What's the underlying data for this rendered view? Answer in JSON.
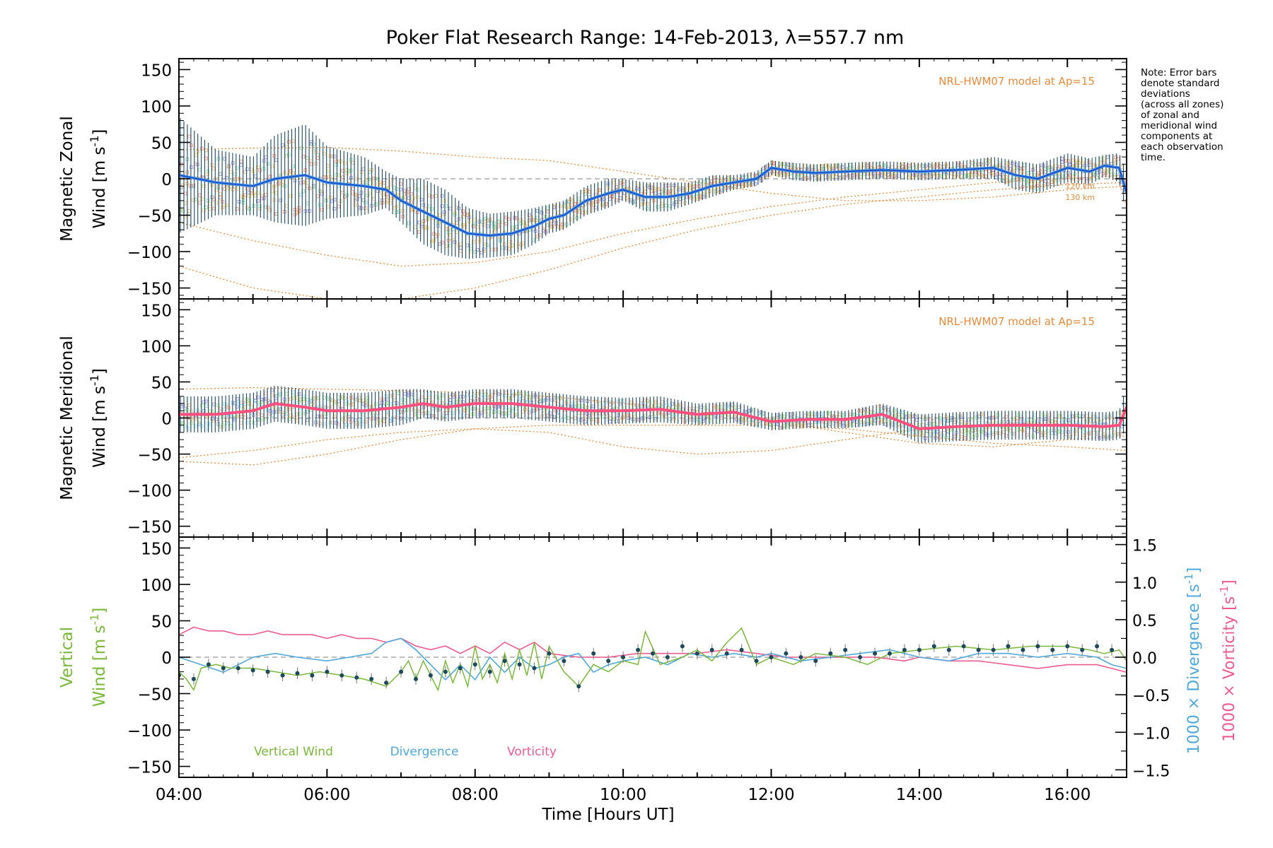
{
  "chart_data": {
    "title": "Poker Flat Research Range: 14-Feb-2013, λ=557.7 nm",
    "xlabel": "Time [Hours UT]",
    "xlim": [
      4.0,
      16.8
    ],
    "x_ticks": [
      4,
      6,
      8,
      10,
      12,
      14,
      16
    ],
    "x_tick_labels": [
      "04:00",
      "06:00",
      "08:00",
      "10:00",
      "12:00",
      "14:00",
      "16:00"
    ],
    "y_ticks": [
      150,
      100,
      50,
      0,
      -50,
      -100,
      -150
    ],
    "y_tick_labels": [
      "150",
      "100",
      "50",
      "0",
      "−50",
      "−100",
      "−150"
    ],
    "ylim": [
      -165,
      165
    ],
    "note_lines": [
      "Note: Error bars",
      "denote standard",
      "deviations",
      "(across all zones)",
      "of zonal and",
      "meridional wind",
      "components at",
      "each observation",
      "time."
    ],
    "colors": {
      "model": "#e88a3a",
      "zonal_mean": "#3a8ee6",
      "zonal_dark": "#1a3cc0",
      "meridional_mean": "#ff4f7e",
      "vertical": "#7ab83a",
      "divergence": "#4fa8dc",
      "vorticity": "#ee5a8f",
      "point": "#1c4a5a",
      "errorbar": "#1a4660",
      "zero_line": "#999999"
    },
    "panels": [
      {
        "type": "line",
        "ylabel_line1": "Magnetic Zonal",
        "ylabel_line2": "Wind [m s",
        "ylabel_sup": "-1",
        "ylabel_close": "]",
        "model_label": "NRL-HWM07 model at Ap=15",
        "model_alt_labels": [
          "120 km",
          "130 km"
        ],
        "mean_x": [
          4.0,
          4.5,
          5.0,
          5.3,
          5.7,
          6.0,
          6.5,
          6.8,
          7.0,
          7.3,
          7.6,
          7.9,
          8.2,
          8.5,
          8.8,
          9.0,
          9.2,
          9.5,
          9.8,
          10.0,
          10.3,
          10.6,
          10.9,
          11.2,
          11.5,
          11.8,
          12.0,
          12.3,
          12.6,
          13.0,
          13.5,
          14.0,
          14.5,
          15.0,
          15.3,
          15.6,
          16.0,
          16.3,
          16.5,
          16.7,
          16.8
        ],
        "mean_y": [
          5,
          -5,
          -10,
          0,
          5,
          -5,
          -10,
          -15,
          -30,
          -45,
          -60,
          -75,
          -78,
          -75,
          -65,
          -55,
          -50,
          -30,
          -20,
          -15,
          -25,
          -25,
          -20,
          -10,
          -5,
          0,
          15,
          10,
          8,
          10,
          12,
          10,
          12,
          15,
          5,
          0,
          15,
          10,
          18,
          15,
          -20
        ],
        "err_half": [
          80,
          45,
          40,
          60,
          70,
          50,
          40,
          25,
          30,
          45,
          45,
          35,
          30,
          30,
          25,
          20,
          20,
          20,
          20,
          15,
          20,
          20,
          15,
          15,
          10,
          10,
          10,
          12,
          12,
          12,
          12,
          12,
          12,
          15,
          20,
          20,
          20,
          18,
          15,
          20,
          30
        ],
        "model_curves": [
          {
            "x": [
              4.0,
              5.0,
              6.0,
              7.0,
              8.0,
              9.0,
              10.0,
              11.0,
              12.0,
              13.0,
              14.0,
              15.0,
              16.0,
              16.8
            ],
            "y": [
              40,
              42,
              43,
              38,
              30,
              25,
              10,
              -5,
              -20,
              -30,
              -30,
              -25,
              -15,
              -10
            ]
          },
          {
            "x": [
              4.0,
              5.0,
              6.0,
              7.0,
              8.0,
              9.0,
              10.0,
              11.0,
              12.0,
              13.0,
              14.0,
              15.0,
              16.0,
              16.8
            ],
            "y": [
              -60,
              -85,
              -105,
              -120,
              -115,
              -100,
              -75,
              -55,
              -38,
              -25,
              -15,
              -5,
              0,
              5
            ]
          },
          {
            "x": [
              4.0,
              5.0,
              6.0,
              7.0,
              8.0,
              9.0,
              10.0,
              11.0,
              12.0,
              13.0,
              14.0,
              15.0,
              16.0,
              16.8
            ],
            "y": [
              -120,
              -150,
              -165,
              -165,
              -150,
              -125,
              -95,
              -70,
              -50,
              -35,
              -25,
              -15,
              -8,
              -5
            ]
          }
        ]
      },
      {
        "type": "line",
        "ylabel_line1": "Magnetic Meridional",
        "ylabel_line2": "Wind [m s",
        "ylabel_sup": "-1",
        "ylabel_close": "]",
        "model_label": "NRL-HWM07 model at Ap=15",
        "model_alt_labels": [],
        "mean_x": [
          4.0,
          4.5,
          5.0,
          5.3,
          5.7,
          6.0,
          6.5,
          7.0,
          7.3,
          7.6,
          8.0,
          8.5,
          9.0,
          9.5,
          10.0,
          10.5,
          11.0,
          11.5,
          12.0,
          12.5,
          13.0,
          13.5,
          14.0,
          14.5,
          15.0,
          15.5,
          16.0,
          16.5,
          16.7,
          16.8
        ],
        "mean_y": [
          5,
          5,
          10,
          20,
          15,
          10,
          10,
          15,
          20,
          15,
          20,
          20,
          15,
          10,
          10,
          12,
          5,
          8,
          -5,
          -2,
          -2,
          5,
          -15,
          -12,
          -10,
          -10,
          -10,
          -12,
          -10,
          15
        ],
        "err_half": [
          25,
          25,
          25,
          25,
          25,
          25,
          25,
          25,
          20,
          20,
          20,
          20,
          20,
          20,
          18,
          18,
          15,
          15,
          12,
          12,
          12,
          15,
          20,
          20,
          20,
          20,
          20,
          20,
          20,
          30
        ],
        "model_curves": [
          {
            "x": [
              4.0,
              5.0,
              6.0,
              7.0,
              8.0,
              9.0,
              10.0,
              11.0,
              12.0,
              13.0,
              14.0,
              15.0,
              16.0,
              16.8
            ],
            "y": [
              40,
              42,
              40,
              38,
              35,
              30,
              20,
              10,
              -5,
              -20,
              -35,
              -40,
              -30,
              -25
            ]
          },
          {
            "x": [
              4.0,
              5.0,
              6.0,
              7.0,
              8.0,
              9.0,
              10.0,
              11.0,
              12.0,
              13.0,
              14.0,
              15.0,
              16.0,
              16.8
            ],
            "y": [
              -55,
              -45,
              -30,
              -20,
              -15,
              -10,
              -10,
              -10,
              -10,
              -15,
              -25,
              -35,
              -40,
              -45
            ]
          },
          {
            "x": [
              4.0,
              5.0,
              6.0,
              7.0,
              8.0,
              9.0,
              10.0,
              11.0,
              12.0,
              13.0,
              14.0,
              15.0,
              16.0,
              16.8
            ],
            "y": [
              -60,
              -65,
              -50,
              -30,
              -15,
              -20,
              -40,
              -50,
              -45,
              -30,
              -15,
              -10,
              -5,
              0
            ]
          }
        ]
      },
      {
        "type": "line",
        "ylabel_line1": "Vertical",
        "ylabel_line2": "Wind [m s",
        "ylabel_sup": "-1",
        "ylabel_close": "]",
        "right_ticks": [
          1.5,
          1.0,
          0.5,
          0.0,
          -0.5,
          -1.0,
          -1.5
        ],
        "right_tick_labels": [
          "1.5",
          "1.0",
          "0.5",
          "0.0",
          "−0.5",
          "−1.0",
          "−1.5"
        ],
        "right_ylim": [
          -1.6,
          1.6
        ],
        "right_label_div": "1000 × Divergence [s",
        "right_label_vor": "1000 × Vorticity [s",
        "legend": [
          "Vertical Wind",
          "Divergence",
          "Vorticity"
        ],
        "vertical_x": [
          4.0,
          4.1,
          4.2,
          4.3,
          4.5,
          4.7,
          5.0,
          5.3,
          5.6,
          5.9,
          6.2,
          6.5,
          6.8,
          7.0,
          7.1,
          7.2,
          7.3,
          7.4,
          7.5,
          7.6,
          7.7,
          7.8,
          7.9,
          8.0,
          8.1,
          8.2,
          8.3,
          8.4,
          8.5,
          8.6,
          8.7,
          8.8,
          8.9,
          9.0,
          9.2,
          9.4,
          9.6,
          9.8,
          10.0,
          10.2,
          10.3,
          10.5,
          10.8,
          11.0,
          11.2,
          11.4,
          11.6,
          11.8,
          12.0,
          12.3,
          12.6,
          13.0,
          13.3,
          13.6,
          14.0,
          14.5,
          15.0,
          15.5,
          16.0,
          16.3,
          16.5,
          16.7,
          16.8
        ],
        "vertical_y": [
          -20,
          -30,
          -45,
          -15,
          -10,
          -15,
          -15,
          -20,
          -25,
          -20,
          -25,
          -30,
          -40,
          -20,
          -5,
          -30,
          -5,
          -25,
          -45,
          -5,
          -35,
          -10,
          -40,
          15,
          -30,
          -10,
          -35,
          5,
          -30,
          10,
          -25,
          20,
          -30,
          15,
          -20,
          -40,
          -10,
          -20,
          -5,
          -10,
          35,
          -10,
          0,
          10,
          -5,
          20,
          40,
          -10,
          0,
          -10,
          5,
          0,
          -10,
          5,
          10,
          15,
          10,
          15,
          15,
          10,
          5,
          10,
          -5
        ],
        "vertical_points_x": [
          4.0,
          4.2,
          4.4,
          4.6,
          4.8,
          5.0,
          5.2,
          5.4,
          5.6,
          5.8,
          6.0,
          6.2,
          6.4,
          6.6,
          6.8,
          7.0,
          7.2,
          7.4,
          7.6,
          7.8,
          8.0,
          8.2,
          8.4,
          8.6,
          8.8,
          9.0,
          9.2,
          9.4,
          9.6,
          9.8,
          10.0,
          10.2,
          10.4,
          10.6,
          10.8,
          11.0,
          11.2,
          11.4,
          11.6,
          11.8,
          12.0,
          12.2,
          12.4,
          12.6,
          12.8,
          13.0,
          13.2,
          13.4,
          13.6,
          13.8,
          14.0,
          14.2,
          14.4,
          14.6,
          14.8,
          15.0,
          15.2,
          15.4,
          15.6,
          15.8,
          16.0,
          16.2,
          16.4,
          16.6
        ],
        "vertical_points_y": [
          -25,
          -30,
          -10,
          -15,
          -15,
          -18,
          -20,
          -25,
          -22,
          -25,
          -20,
          -25,
          -28,
          -30,
          -35,
          -20,
          -30,
          -25,
          -20,
          -15,
          -10,
          -20,
          -5,
          -10,
          -15,
          5,
          -5,
          -40,
          5,
          -5,
          0,
          10,
          5,
          0,
          15,
          5,
          10,
          5,
          10,
          -5,
          0,
          5,
          0,
          -5,
          5,
          10,
          0,
          5,
          5,
          10,
          10,
          15,
          10,
          15,
          10,
          10,
          15,
          10,
          15,
          10,
          15,
          10,
          15,
          10
        ],
        "divergence_x": [
          4.0,
          4.3,
          4.6,
          5.0,
          5.3,
          5.6,
          6.0,
          6.3,
          6.6,
          6.8,
          7.0,
          7.2,
          7.4,
          7.6,
          7.8,
          8.0,
          8.2,
          8.4,
          8.6,
          8.8,
          9.0,
          9.2,
          9.4,
          9.6,
          9.8,
          10.0,
          10.3,
          10.6,
          10.9,
          11.2,
          11.5,
          11.8,
          12.0,
          12.4,
          12.8,
          13.2,
          13.6,
          14.0,
          14.4,
          14.8,
          15.2,
          15.6,
          16.0,
          16.4,
          16.6,
          16.8
        ],
        "divergence_y": [
          0.0,
          -0.1,
          -0.2,
          0.0,
          0.05,
          0.0,
          -0.05,
          0.0,
          0.05,
          0.2,
          0.25,
          0.1,
          -0.1,
          -0.3,
          -0.1,
          -0.3,
          0.0,
          -0.2,
          0.0,
          -0.15,
          -0.1,
          0.0,
          0.05,
          -0.2,
          -0.1,
          -0.05,
          0.0,
          -0.1,
          0.05,
          0.0,
          0.05,
          0.0,
          0.05,
          -0.05,
          0.0,
          0.05,
          0.1,
          0.0,
          -0.05,
          0.05,
          0.05,
          0.0,
          0.05,
          0.0,
          -0.1,
          -0.15
        ],
        "vorticity_x": [
          4.0,
          4.2,
          4.4,
          4.6,
          4.8,
          5.0,
          5.2,
          5.4,
          5.6,
          5.8,
          6.0,
          6.2,
          6.4,
          6.6,
          6.8,
          7.0,
          7.2,
          7.4,
          7.6,
          7.8,
          8.0,
          8.2,
          8.4,
          8.6,
          8.8,
          9.0,
          9.4,
          9.8,
          10.2,
          10.6,
          11.0,
          11.4,
          11.8,
          12.2,
          12.6,
          13.0,
          13.4,
          13.8,
          14.0,
          14.4,
          14.8,
          15.2,
          15.6,
          16.0,
          16.4,
          16.6,
          16.8
        ],
        "vorticity_y": [
          0.3,
          0.4,
          0.35,
          0.35,
          0.3,
          0.3,
          0.35,
          0.3,
          0.3,
          0.3,
          0.25,
          0.3,
          0.25,
          0.25,
          0.2,
          0.25,
          0.15,
          0.1,
          0.15,
          0.05,
          0.15,
          0.05,
          0.2,
          0.1,
          0.2,
          0.05,
          0.0,
          0.0,
          0.05,
          0.05,
          0.05,
          0.1,
          0.05,
          0.0,
          0.0,
          0.0,
          0.0,
          -0.05,
          0.0,
          -0.05,
          -0.05,
          -0.1,
          -0.15,
          -0.1,
          -0.1,
          -0.15,
          -0.2
        ]
      }
    ]
  }
}
